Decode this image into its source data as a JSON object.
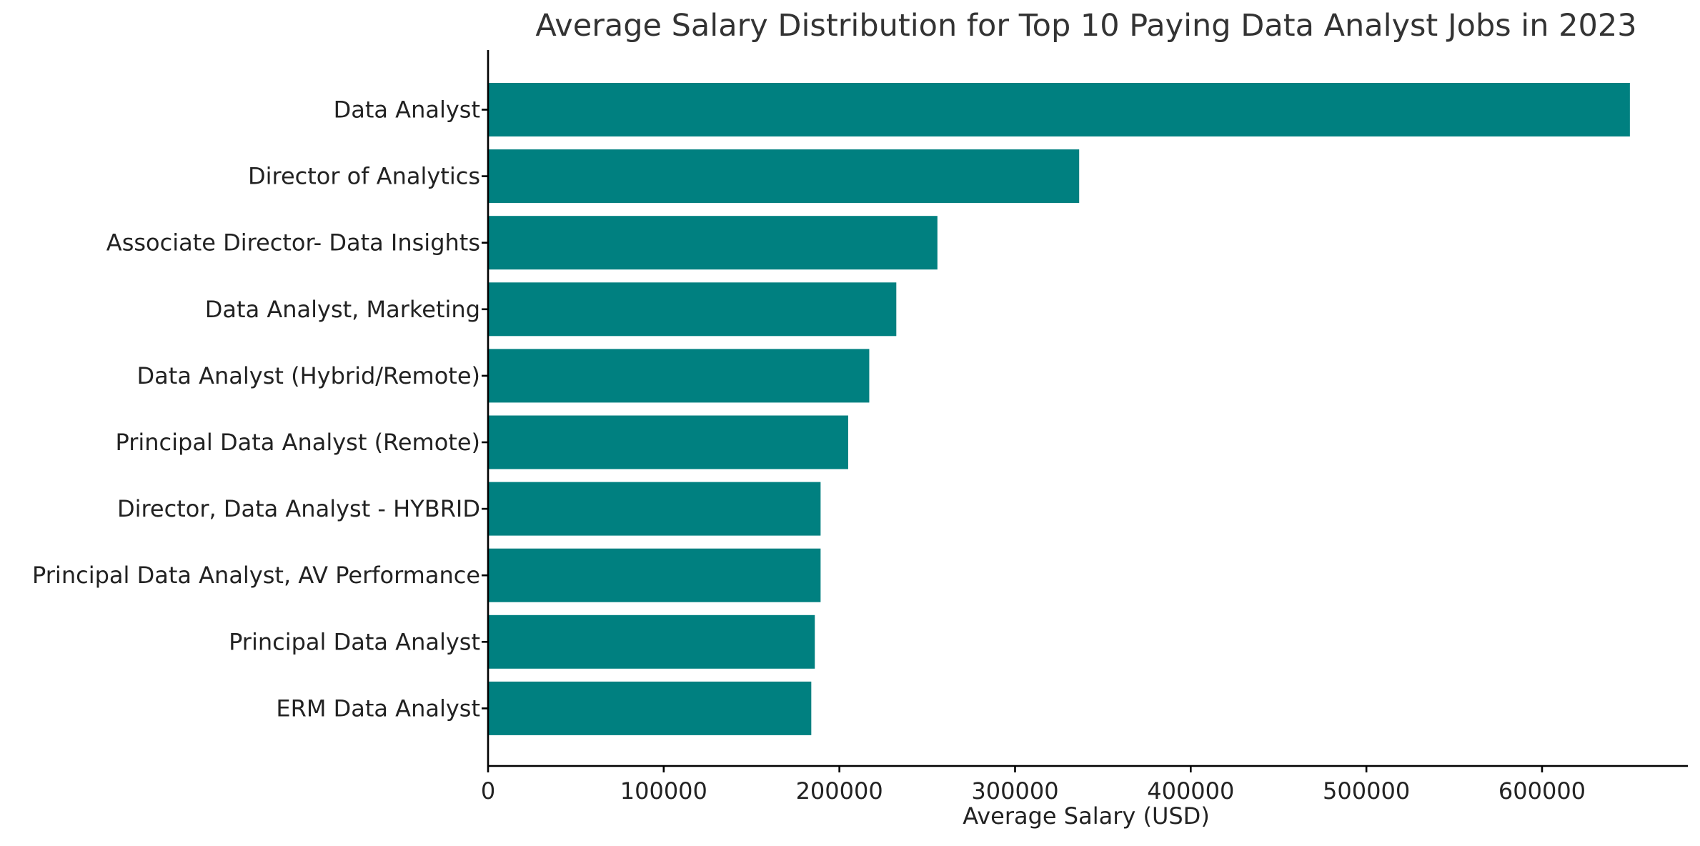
{
  "chart_data": {
    "type": "bar",
    "orientation": "horizontal",
    "title": "Average Salary Distribution for Top 10 Paying Data Analyst Jobs in 2023",
    "xlabel": "Average Salary (USD)",
    "ylabel": "",
    "categories": [
      "Data Analyst",
      "Director of Analytics",
      "Associate Director- Data Insights",
      "Data Analyst, Marketing",
      "Data Analyst (Hybrid/Remote)",
      "Principal Data Analyst (Remote)",
      "Director, Data Analyst - HYBRID",
      "Principal Data Analyst, AV Performance",
      "Principal Data Analyst",
      "ERM Data Analyst"
    ],
    "values": [
      650000,
      336500,
      255800,
      232400,
      217000,
      205000,
      189300,
      189300,
      186000,
      184000
    ],
    "xlim": [
      0,
      683000
    ],
    "xticks": [
      0,
      100000,
      200000,
      300000,
      400000,
      500000,
      600000
    ],
    "xtick_labels": [
      "0",
      "100000",
      "200000",
      "300000",
      "400000",
      "500000",
      "600000"
    ],
    "bar_color": "#008080",
    "grid": false,
    "legend": "none"
  }
}
